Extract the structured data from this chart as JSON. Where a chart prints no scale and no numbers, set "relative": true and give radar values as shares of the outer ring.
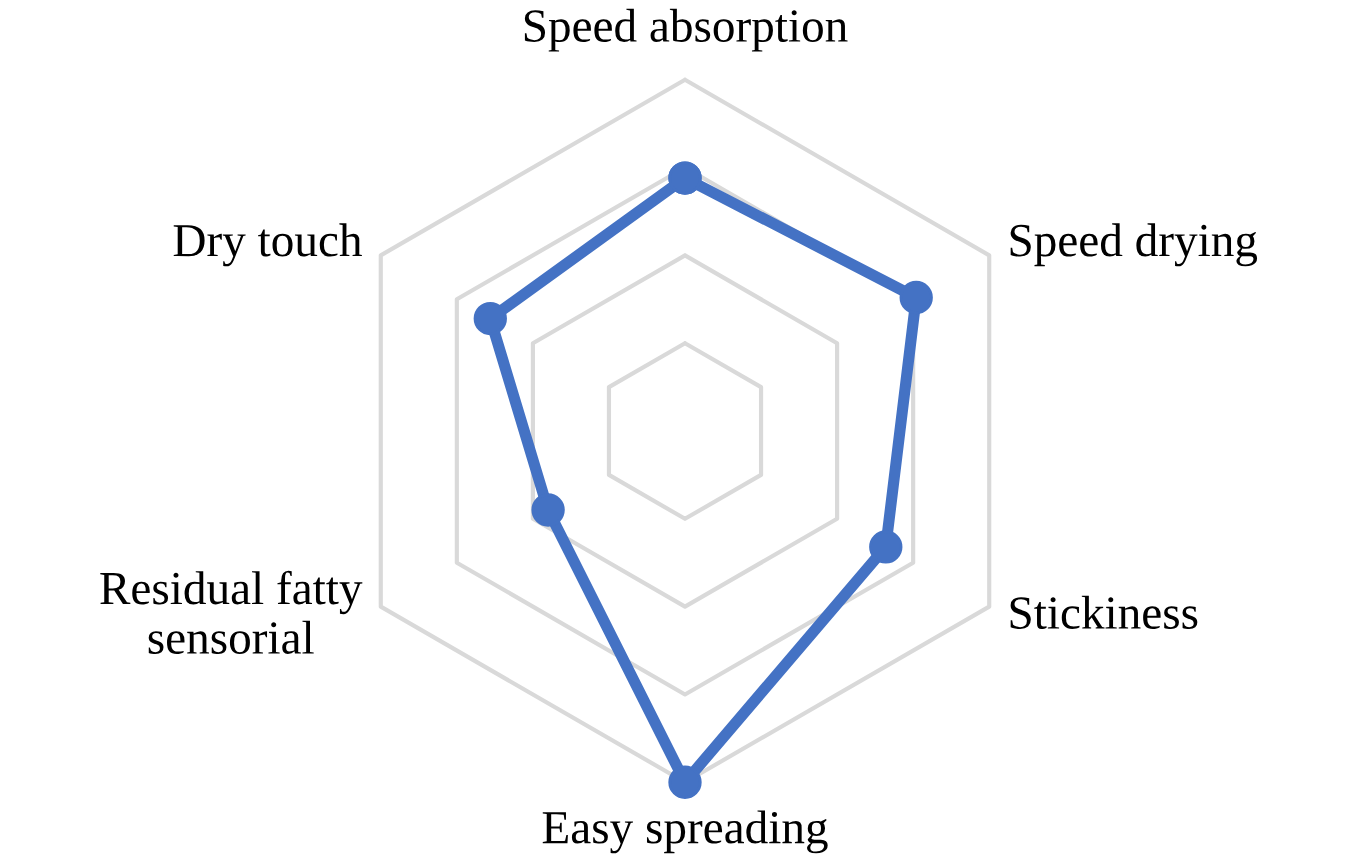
{
  "chart_data": {
    "type": "radar",
    "relative": true,
    "grid": true,
    "marker": "circle",
    "line_style": "solid",
    "categories": [
      "Speed absorption",
      "Speed drying",
      "Stickiness",
      "Easy spreading",
      "Residual fatty\nsensorial",
      "Dry touch"
    ],
    "series": [
      {
        "color": "#4472c4",
        "values": [
          0.72,
          0.76,
          0.66,
          1.0,
          0.45,
          0.64
        ]
      }
    ]
  }
}
